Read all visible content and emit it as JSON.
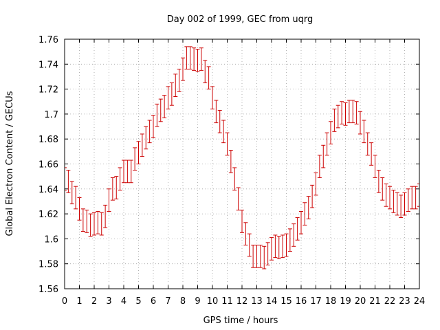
{
  "chart_data": {
    "type": "scatter",
    "title": "Day 002 of 1999, GEC from uqrg",
    "xlabel": "GPS time / hours",
    "ylabel": "Global Electron Content / GECUs",
    "xlim": [
      0,
      24
    ],
    "ylim": [
      1.56,
      1.76
    ],
    "xticks": [
      0,
      1,
      2,
      3,
      4,
      5,
      6,
      7,
      8,
      9,
      10,
      11,
      12,
      13,
      14,
      15,
      16,
      17,
      18,
      19,
      20,
      21,
      22,
      23,
      24
    ],
    "xtick_labels": [
      "0",
      "1",
      "2",
      "3",
      "4",
      "5",
      "6",
      "7",
      "8",
      "9",
      "10",
      "11",
      "12",
      "13",
      "14",
      "15",
      "16",
      "17",
      "18",
      "19",
      "20",
      "21",
      "22",
      "23",
      "24"
    ],
    "yticks": [
      1.56,
      1.58,
      1.6,
      1.62,
      1.64,
      1.66,
      1.68,
      1.7,
      1.72,
      1.74,
      1.76
    ],
    "ytick_labels": [
      "1.56",
      "1.58",
      "1.6",
      "1.62",
      "1.64",
      "1.66",
      "1.68",
      "1.7",
      "1.72",
      "1.74",
      "1.76"
    ],
    "grid": true,
    "error_bar": 0.009,
    "series_color": "#cc0000",
    "grid_color": "#a0a0a0",
    "series": [
      {
        "name": "GEC",
        "x": [
          0,
          0.25,
          0.5,
          0.75,
          1,
          1.25,
          1.5,
          1.75,
          2,
          2.25,
          2.5,
          2.75,
          3,
          3.25,
          3.5,
          3.75,
          4,
          4.25,
          4.5,
          4.75,
          5,
          5.25,
          5.5,
          5.75,
          6,
          6.25,
          6.5,
          6.75,
          7,
          7.25,
          7.5,
          7.75,
          8,
          8.25,
          8.5,
          8.75,
          9,
          9.25,
          9.5,
          9.75,
          10,
          10.25,
          10.5,
          10.75,
          11,
          11.25,
          11.5,
          11.75,
          12,
          12.25,
          12.5,
          12.75,
          13,
          13.25,
          13.5,
          13.75,
          14,
          14.25,
          14.5,
          14.75,
          15,
          15.25,
          15.5,
          15.75,
          16,
          16.25,
          16.5,
          16.75,
          17,
          17.25,
          17.5,
          17.75,
          18,
          18.25,
          18.5,
          18.75,
          19,
          19.25,
          19.5,
          19.75,
          20,
          20.25,
          20.5,
          20.75,
          21,
          21.25,
          21.5,
          21.75,
          22,
          22.25,
          22.5,
          22.75,
          23,
          23.25,
          23.5,
          23.75,
          24
        ],
        "y": [
          1.648,
          1.646,
          1.637,
          1.633,
          1.624,
          1.615,
          1.614,
          1.611,
          1.612,
          1.613,
          1.612,
          1.618,
          1.631,
          1.64,
          1.641,
          1.648,
          1.654,
          1.654,
          1.654,
          1.664,
          1.669,
          1.675,
          1.681,
          1.686,
          1.69,
          1.699,
          1.703,
          1.706,
          1.713,
          1.716,
          1.723,
          1.727,
          1.736,
          1.745,
          1.745,
          1.744,
          1.743,
          1.744,
          1.734,
          1.729,
          1.713,
          1.702,
          1.694,
          1.686,
          1.676,
          1.662,
          1.648,
          1.632,
          1.614,
          1.604,
          1.595,
          1.586,
          1.586,
          1.586,
          1.585,
          1.588,
          1.592,
          1.594,
          1.593,
          1.594,
          1.595,
          1.599,
          1.603,
          1.608,
          1.613,
          1.62,
          1.625,
          1.634,
          1.644,
          1.658,
          1.666,
          1.676,
          1.685,
          1.695,
          1.698,
          1.701,
          1.7,
          1.702,
          1.702,
          1.701,
          1.693,
          1.686,
          1.676,
          1.668,
          1.658,
          1.646,
          1.64,
          1.635,
          1.633,
          1.63,
          1.628,
          1.626,
          1.628,
          1.631,
          1.633,
          1.633,
          1.635
        ]
      }
    ]
  }
}
